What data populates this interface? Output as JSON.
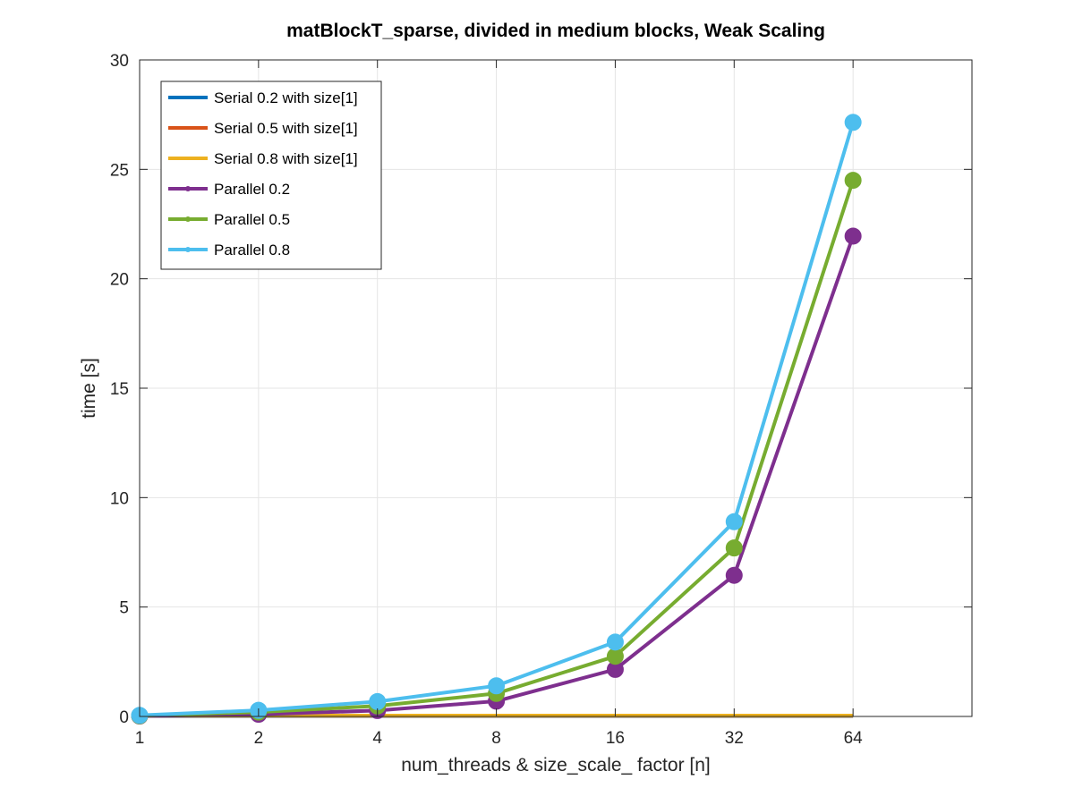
{
  "chart_data": {
    "type": "line",
    "title": "matBlockT_sparse, divided in medium blocks, Weak Scaling",
    "xlabel": "num_threads & size_scale_ factor [n]",
    "ylabel": "time [s]",
    "x_scale": "log2",
    "x": [
      1,
      2,
      4,
      8,
      16,
      32,
      64
    ],
    "x_tick_labels": [
      "1",
      "2",
      "4",
      "8",
      "16",
      "32",
      "64"
    ],
    "xlim": [
      1,
      128
    ],
    "ylim": [
      0,
      30
    ],
    "y_ticks": [
      0,
      5,
      10,
      15,
      20,
      25,
      30
    ],
    "grid": true,
    "legend_position": "top-left",
    "series": [
      {
        "name": "Serial 0.2 with size[1]",
        "color": "#0072BD",
        "marker": false,
        "values": [
          0.02,
          0.02,
          0.02,
          0.02,
          0.02,
          0.02,
          0.02
        ]
      },
      {
        "name": "Serial 0.5 with size[1]",
        "color": "#D95319",
        "marker": false,
        "values": [
          0.03,
          0.03,
          0.03,
          0.03,
          0.03,
          0.03,
          0.03
        ]
      },
      {
        "name": "Serial 0.8 with size[1]",
        "color": "#EDB120",
        "marker": false,
        "values": [
          0.04,
          0.04,
          0.04,
          0.04,
          0.04,
          0.04,
          0.04
        ]
      },
      {
        "name": "Parallel 0.2",
        "color": "#7E2F8E",
        "marker": true,
        "values": [
          0.02,
          0.1,
          0.27,
          0.7,
          2.15,
          6.45,
          21.95
        ]
      },
      {
        "name": "Parallel 0.5",
        "color": "#77AC30",
        "marker": true,
        "values": [
          0.03,
          0.2,
          0.48,
          1.05,
          2.75,
          7.7,
          24.5
        ]
      },
      {
        "name": "Parallel 0.8",
        "color": "#4DBEEE",
        "marker": true,
        "values": [
          0.05,
          0.28,
          0.68,
          1.4,
          3.4,
          8.9,
          27.15
        ]
      }
    ]
  }
}
